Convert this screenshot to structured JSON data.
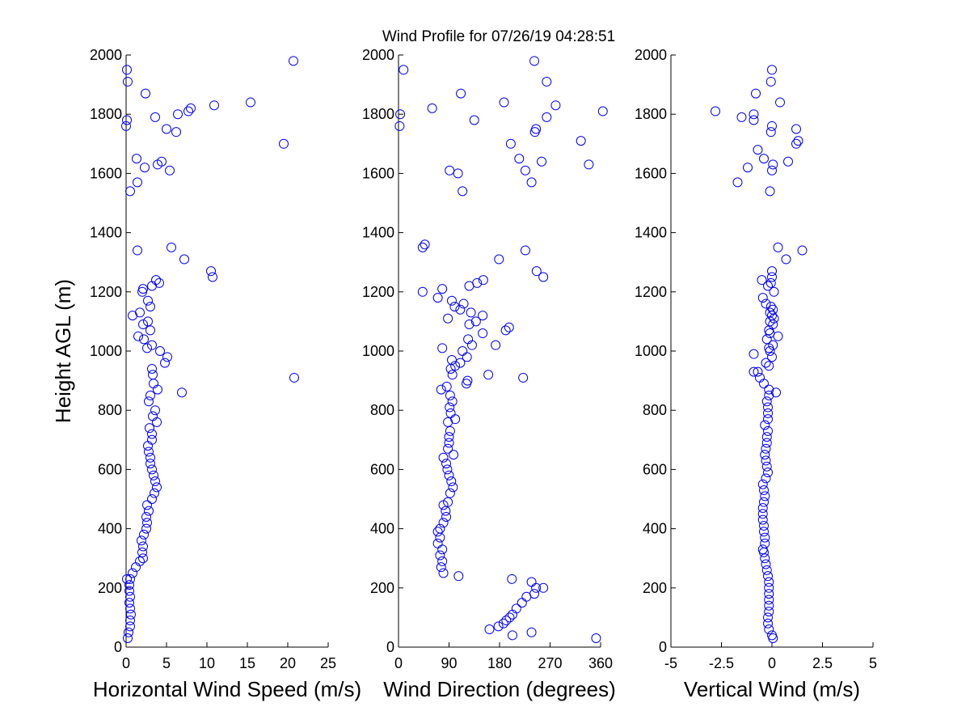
{
  "title": "Wind Profile for  07/26/19 04:28:51",
  "chart_data": [
    {
      "type": "scatter",
      "xlabel": "Horizontal Wind Speed (m/s)",
      "ylabel": "Height AGL (m)",
      "xlim": [
        0,
        25
      ],
      "ylim": [
        0,
        2000
      ],
      "xticks": [
        "0",
        "5",
        "10",
        "15",
        "20",
        "25"
      ],
      "yticks": [
        "0",
        "200",
        "400",
        "600",
        "800",
        "1000",
        "1200",
        "1400",
        "1600",
        "1800",
        "2000"
      ],
      "marker_color": "#0000ff",
      "points": [
        [
          0.2,
          30
        ],
        [
          0.3,
          50
        ],
        [
          0.5,
          70
        ],
        [
          0.5,
          90
        ],
        [
          0.6,
          110
        ],
        [
          0.5,
          130
        ],
        [
          0.4,
          150
        ],
        [
          0.5,
          170
        ],
        [
          0.4,
          190
        ],
        [
          0.4,
          210
        ],
        [
          0.5,
          230
        ],
        [
          0.1,
          230
        ],
        [
          0.8,
          250
        ],
        [
          1.2,
          270
        ],
        [
          1.7,
          290
        ],
        [
          2.1,
          300
        ],
        [
          2.0,
          320
        ],
        [
          2.1,
          340
        ],
        [
          1.9,
          360
        ],
        [
          2.2,
          380
        ],
        [
          2.5,
          400
        ],
        [
          2.6,
          420
        ],
        [
          2.5,
          440
        ],
        [
          2.8,
          460
        ],
        [
          2.6,
          480
        ],
        [
          3.2,
          500
        ],
        [
          3.5,
          520
        ],
        [
          3.8,
          540
        ],
        [
          3.6,
          560
        ],
        [
          3.4,
          580
        ],
        [
          3.2,
          600
        ],
        [
          3.0,
          620
        ],
        [
          3.0,
          640
        ],
        [
          2.8,
          660
        ],
        [
          2.7,
          680
        ],
        [
          3.2,
          700
        ],
        [
          3.2,
          720
        ],
        [
          2.9,
          740
        ],
        [
          3.8,
          760
        ],
        [
          3.3,
          780
        ],
        [
          3.6,
          800
        ],
        [
          2.8,
          830
        ],
        [
          3.0,
          850
        ],
        [
          3.9,
          870
        ],
        [
          3.4,
          890
        ],
        [
          3.3,
          920
        ],
        [
          6.9,
          860
        ],
        [
          3.2,
          940
        ],
        [
          4.8,
          960
        ],
        [
          5.1,
          980
        ],
        [
          4.2,
          1000
        ],
        [
          2.6,
          1010
        ],
        [
          3.2,
          1020
        ],
        [
          2.2,
          1040
        ],
        [
          1.5,
          1050
        ],
        [
          3.0,
          1070
        ],
        [
          2.1,
          1090
        ],
        [
          2.7,
          1100
        ],
        [
          0.8,
          1120
        ],
        [
          1.7,
          1130
        ],
        [
          3.0,
          1150
        ],
        [
          2.7,
          1170
        ],
        [
          2.0,
          1200
        ],
        [
          2.1,
          1210
        ],
        [
          3.2,
          1220
        ],
        [
          4.1,
          1230
        ],
        [
          3.7,
          1240
        ],
        [
          10.5,
          1270
        ],
        [
          10.7,
          1250
        ],
        [
          7.2,
          1310
        ],
        [
          1.4,
          1340
        ],
        [
          5.6,
          1350
        ],
        [
          0.5,
          1540
        ],
        [
          1.4,
          1570
        ],
        [
          2.3,
          1620
        ],
        [
          5.4,
          1610
        ],
        [
          3.9,
          1630
        ],
        [
          4.4,
          1640
        ],
        [
          1.3,
          1650
        ],
        [
          19.5,
          1700
        ],
        [
          6.2,
          1740
        ],
        [
          5.0,
          1750
        ],
        [
          0.0,
          1760
        ],
        [
          0.1,
          1780
        ],
        [
          3.6,
          1790
        ],
        [
          6.4,
          1800
        ],
        [
          7.7,
          1810
        ],
        [
          8.0,
          1820
        ],
        [
          10.9,
          1830
        ],
        [
          15.4,
          1840
        ],
        [
          2.4,
          1870
        ],
        [
          0.2,
          1910
        ],
        [
          0.1,
          1950
        ],
        [
          20.7,
          1980
        ],
        [
          20.8,
          910
        ]
      ]
    },
    {
      "type": "scatter",
      "xlabel": "Wind Direction (degrees)",
      "ylabel": "",
      "xlim": [
        0,
        360
      ],
      "ylim": [
        0,
        2000
      ],
      "xticks": [
        "0",
        "90",
        "180",
        "270",
        "360"
      ],
      "yticks": [
        "0",
        "200",
        "400",
        "600",
        "800",
        "1000",
        "1200",
        "1400",
        "1600",
        "1800",
        "2000"
      ],
      "marker_color": "#0000ff",
      "points": [
        [
          352,
          30
        ],
        [
          203,
          40
        ],
        [
          237,
          50
        ],
        [
          162,
          60
        ],
        [
          178,
          70
        ],
        [
          187,
          80
        ],
        [
          192,
          90
        ],
        [
          198,
          100
        ],
        [
          203,
          110
        ],
        [
          210,
          130
        ],
        [
          220,
          150
        ],
        [
          228,
          170
        ],
        [
          242,
          180
        ],
        [
          245,
          200
        ],
        [
          258,
          200
        ],
        [
          237,
          220
        ],
        [
          202,
          230
        ],
        [
          107,
          240
        ],
        [
          80,
          250
        ],
        [
          76,
          270
        ],
        [
          78,
          290
        ],
        [
          74,
          310
        ],
        [
          78,
          330
        ],
        [
          70,
          350
        ],
        [
          74,
          370
        ],
        [
          70,
          390
        ],
        [
          74,
          400
        ],
        [
          80,
          420
        ],
        [
          85,
          440
        ],
        [
          84,
          460
        ],
        [
          80,
          480
        ],
        [
          88,
          490
        ],
        [
          92,
          520
        ],
        [
          97,
          540
        ],
        [
          94,
          560
        ],
        [
          90,
          580
        ],
        [
          87,
          600
        ],
        [
          85,
          620
        ],
        [
          80,
          640
        ],
        [
          98,
          650
        ],
        [
          88,
          670
        ],
        [
          90,
          690
        ],
        [
          90,
          710
        ],
        [
          92,
          730
        ],
        [
          88,
          760
        ],
        [
          101,
          770
        ],
        [
          93,
          790
        ],
        [
          91,
          810
        ],
        [
          96,
          830
        ],
        [
          92,
          850
        ],
        [
          76,
          870
        ],
        [
          86,
          880
        ],
        [
          121,
          890
        ],
        [
          123,
          900
        ],
        [
          96,
          920
        ],
        [
          160,
          920
        ],
        [
          222,
          910
        ],
        [
          93,
          940
        ],
        [
          101,
          950
        ],
        [
          110,
          960
        ],
        [
          95,
          970
        ],
        [
          122,
          980
        ],
        [
          114,
          1000
        ],
        [
          78,
          1010
        ],
        [
          131,
          1020
        ],
        [
          173,
          1020
        ],
        [
          124,
          1040
        ],
        [
          150,
          1060
        ],
        [
          191,
          1070
        ],
        [
          197,
          1080
        ],
        [
          126,
          1090
        ],
        [
          138,
          1100
        ],
        [
          88,
          1110
        ],
        [
          150,
          1120
        ],
        [
          129,
          1130
        ],
        [
          110,
          1140
        ],
        [
          100,
          1150
        ],
        [
          116,
          1160
        ],
        [
          95,
          1170
        ],
        [
          70,
          1180
        ],
        [
          43,
          1200
        ],
        [
          78,
          1210
        ],
        [
          126,
          1220
        ],
        [
          140,
          1230
        ],
        [
          151,
          1240
        ],
        [
          226,
          1340
        ],
        [
          246,
          1270
        ],
        [
          258,
          1250
        ],
        [
          179,
          1310
        ],
        [
          43,
          1350
        ],
        [
          47,
          1360
        ],
        [
          114,
          1540
        ],
        [
          237,
          1570
        ],
        [
          91,
          1610
        ],
        [
          106,
          1600
        ],
        [
          226,
          1610
        ],
        [
          215,
          1650
        ],
        [
          339,
          1630
        ],
        [
          255,
          1640
        ],
        [
          325,
          1710
        ],
        [
          200,
          1700
        ],
        [
          243,
          1740
        ],
        [
          245,
          1750
        ],
        [
          264,
          1790
        ],
        [
          135,
          1780
        ],
        [
          2,
          1760
        ],
        [
          3,
          1800
        ],
        [
          60,
          1820
        ],
        [
          188,
          1840
        ],
        [
          280,
          1830
        ],
        [
          364,
          1810
        ],
        [
          111,
          1870
        ],
        [
          264,
          1910
        ],
        [
          9,
          1950
        ],
        [
          242,
          1980
        ]
      ]
    },
    {
      "type": "scatter",
      "xlabel": "Vertical Wind (m/s)",
      "ylabel": "",
      "xlim": [
        -5,
        5
      ],
      "ylim": [
        0,
        2000
      ],
      "xticks": [
        "-5",
        "-2.5",
        "0",
        "2.5",
        "5"
      ],
      "yticks": [
        "0",
        "200",
        "400",
        "600",
        "800",
        "1000",
        "1200",
        "1400",
        "1600",
        "1800",
        "2000"
      ],
      "marker_color": "#0000ff",
      "points": [
        [
          0.05,
          30
        ],
        [
          0.0,
          40
        ],
        [
          -0.15,
          60
        ],
        [
          -0.2,
          80
        ],
        [
          -0.2,
          100
        ],
        [
          -0.15,
          120
        ],
        [
          -0.15,
          140
        ],
        [
          -0.15,
          160
        ],
        [
          -0.15,
          180
        ],
        [
          -0.15,
          200
        ],
        [
          -0.15,
          220
        ],
        [
          -0.2,
          240
        ],
        [
          -0.25,
          260
        ],
        [
          -0.3,
          280
        ],
        [
          -0.35,
          300
        ],
        [
          -0.4,
          320
        ],
        [
          -0.45,
          330
        ],
        [
          -0.35,
          350
        ],
        [
          -0.35,
          370
        ],
        [
          -0.4,
          390
        ],
        [
          -0.4,
          410
        ],
        [
          -0.45,
          430
        ],
        [
          -0.45,
          450
        ],
        [
          -0.45,
          470
        ],
        [
          -0.4,
          490
        ],
        [
          -0.35,
          510
        ],
        [
          -0.4,
          530
        ],
        [
          -0.45,
          550
        ],
        [
          -0.3,
          570
        ],
        [
          -0.2,
          590
        ],
        [
          -0.25,
          610
        ],
        [
          -0.3,
          630
        ],
        [
          -0.35,
          650
        ],
        [
          -0.3,
          670
        ],
        [
          -0.25,
          690
        ],
        [
          -0.25,
          710
        ],
        [
          -0.2,
          730
        ],
        [
          -0.35,
          750
        ],
        [
          -0.2,
          770
        ],
        [
          -0.2,
          790
        ],
        [
          -0.2,
          810
        ],
        [
          -0.25,
          830
        ],
        [
          -0.15,
          850
        ],
        [
          -0.15,
          870
        ],
        [
          0.2,
          860
        ],
        [
          -0.4,
          890
        ],
        [
          -0.6,
          910
        ],
        [
          -0.9,
          930
        ],
        [
          -0.7,
          930
        ],
        [
          -0.15,
          950
        ],
        [
          -0.3,
          960
        ],
        [
          0.0,
          980
        ],
        [
          -0.9,
          990
        ],
        [
          -0.1,
          1000
        ],
        [
          -0.15,
          1010
        ],
        [
          0.05,
          1020
        ],
        [
          -0.25,
          1040
        ],
        [
          0.3,
          1050
        ],
        [
          -0.1,
          1060
        ],
        [
          -0.15,
          1070
        ],
        [
          0.05,
          1090
        ],
        [
          -0.1,
          1100
        ],
        [
          0.1,
          1110
        ],
        [
          0.0,
          1120
        ],
        [
          -0.1,
          1130
        ],
        [
          0.05,
          1140
        ],
        [
          -0.05,
          1150
        ],
        [
          -0.3,
          1160
        ],
        [
          -0.45,
          1180
        ],
        [
          0.1,
          1200
        ],
        [
          -0.2,
          1220
        ],
        [
          -0.05,
          1230
        ],
        [
          -0.5,
          1240
        ],
        [
          0.0,
          1250
        ],
        [
          0.0,
          1270
        ],
        [
          0.7,
          1310
        ],
        [
          1.5,
          1340
        ],
        [
          0.3,
          1350
        ],
        [
          -0.1,
          1540
        ],
        [
          -1.7,
          1570
        ],
        [
          -1.2,
          1620
        ],
        [
          0.0,
          1610
        ],
        [
          0.05,
          1630
        ],
        [
          0.8,
          1640
        ],
        [
          -0.4,
          1650
        ],
        [
          -0.7,
          1680
        ],
        [
          1.2,
          1700
        ],
        [
          1.3,
          1710
        ],
        [
          -0.05,
          1740
        ],
        [
          1.2,
          1750
        ],
        [
          0.0,
          1760
        ],
        [
          -0.9,
          1780
        ],
        [
          -1.5,
          1790
        ],
        [
          -0.9,
          1800
        ],
        [
          -2.8,
          1810
        ],
        [
          0.4,
          1840
        ],
        [
          -0.8,
          1870
        ],
        [
          -0.05,
          1910
        ],
        [
          0.0,
          1950
        ]
      ]
    }
  ]
}
